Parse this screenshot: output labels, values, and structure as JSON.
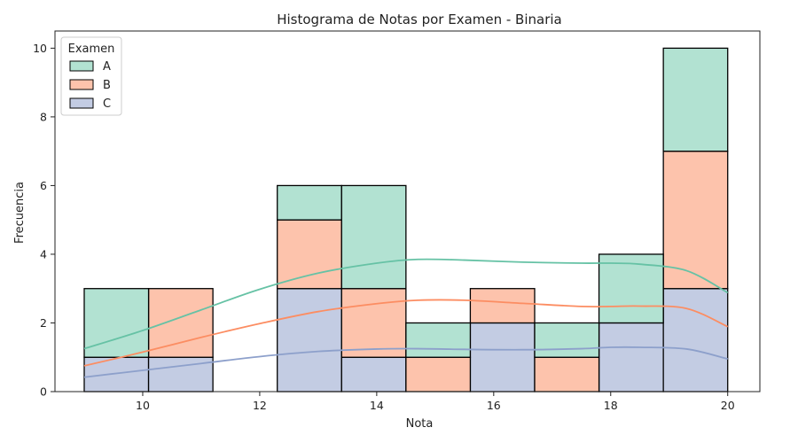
{
  "chart_data": {
    "type": "bar",
    "stacked": true,
    "title": "Histograma de Notas por Examen - Binaria",
    "xlabel": "Nota",
    "ylabel": "Frecuencia",
    "xlim": [
      8.5,
      20.55
    ],
    "ylim": [
      0,
      10.5
    ],
    "xticks": [
      10,
      12,
      14,
      16,
      18,
      20
    ],
    "yticks": [
      0,
      2,
      4,
      6,
      8,
      10
    ],
    "bin_edges": [
      9.0,
      10.1,
      11.2,
      12.3,
      13.4,
      14.5,
      15.6,
      16.7,
      17.8,
      18.9,
      20.0
    ],
    "legend": {
      "title": "Examen",
      "placement": "top-left"
    },
    "series": [
      {
        "name": "C",
        "color": "#c3cce3",
        "line_color": "#8da0cb",
        "values": [
          1,
          1,
          0,
          3,
          1,
          0,
          2,
          0,
          2,
          3
        ],
        "kde_y": [
          0.42,
          0.62,
          0.82,
          1.02,
          1.17,
          1.24,
          1.25,
          1.23,
          1.22,
          1.25,
          1.29,
          1.29,
          1.24,
          0.95
        ]
      },
      {
        "name": "B",
        "color": "#fdc3ac",
        "line_color": "#fc8d62",
        "values": [
          0,
          2,
          0,
          2,
          2,
          1,
          1,
          1,
          0,
          4
        ],
        "kde_y": [
          0.75,
          1.15,
          1.58,
          1.98,
          2.33,
          2.56,
          2.66,
          2.66,
          2.57,
          2.48,
          2.48,
          2.49,
          2.42,
          1.89
        ]
      },
      {
        "name": "A",
        "color": "#b2e2d2",
        "line_color": "#66c2a5",
        "values": [
          2,
          0,
          0,
          1,
          3,
          1,
          0,
          1,
          2,
          3
        ],
        "kde_y": [
          1.25,
          1.78,
          2.38,
          2.98,
          3.45,
          3.74,
          3.85,
          3.83,
          3.77,
          3.74,
          3.74,
          3.71,
          3.52,
          2.88
        ]
      }
    ],
    "kde_x": [
      9.0,
      10.0,
      11.0,
      12.0,
      13.0,
      14.0,
      14.7,
      15.5,
      16.5,
      17.5,
      18.0,
      18.5,
      19.3,
      20.0
    ],
    "grid": false
  }
}
